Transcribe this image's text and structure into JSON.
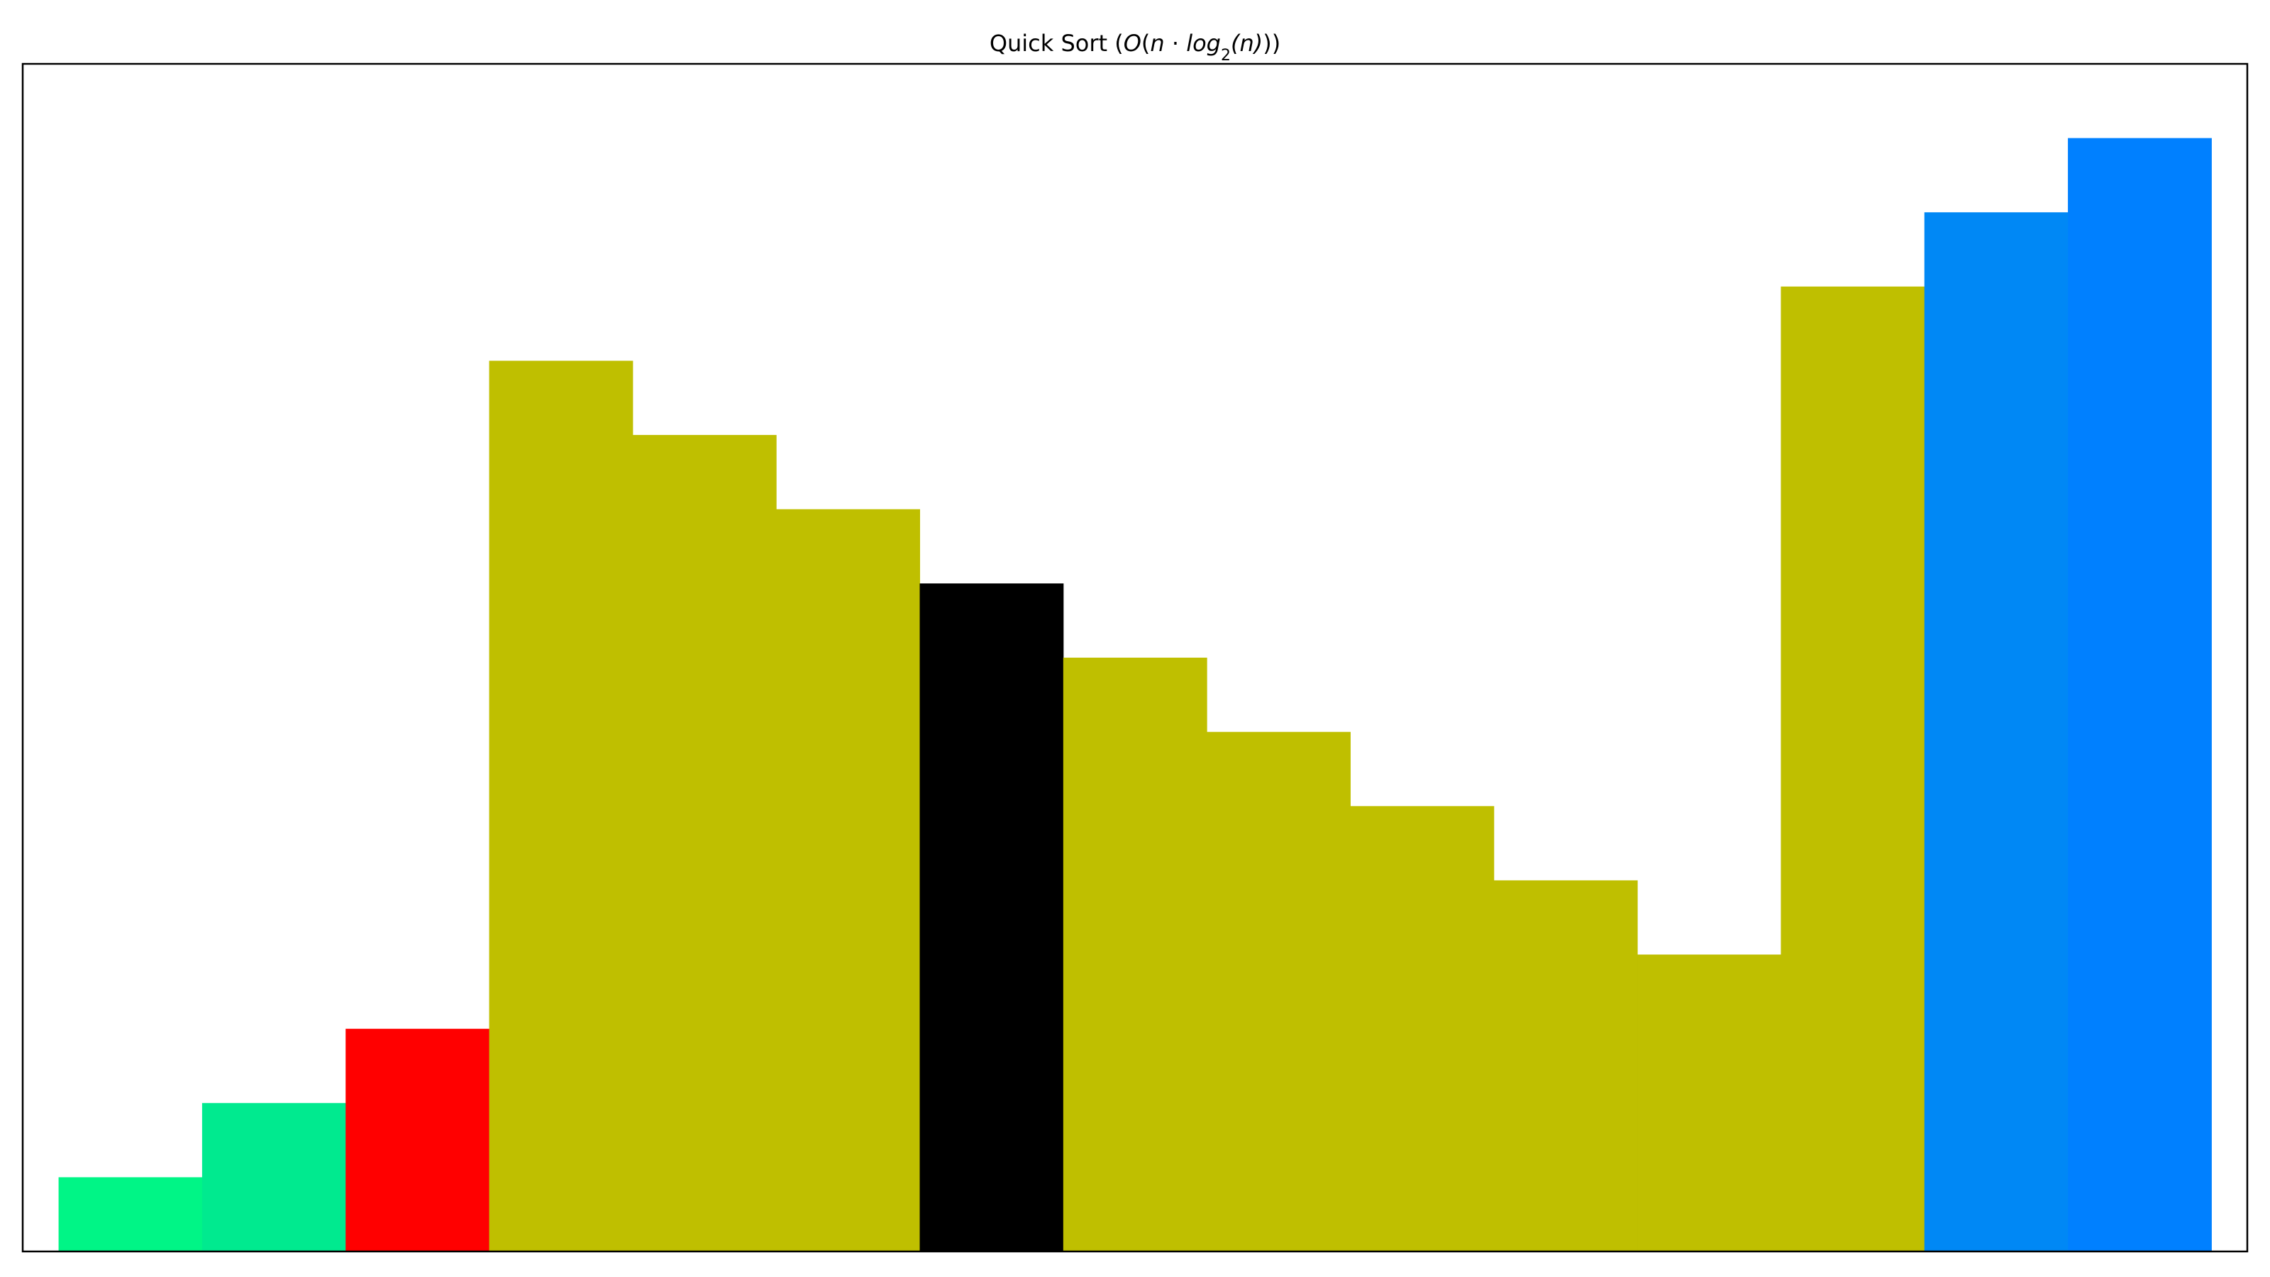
{
  "chart_data": {
    "type": "bar",
    "title": {
      "prefix": "Quick Sort (",
      "math_o": "O",
      "math_paren_open": "(",
      "math_n": "n",
      "math_dot": " · ",
      "math_log": "log",
      "math_sub": "2",
      "math_arg": "(n)",
      "suffix": "))"
    },
    "title_full": "Quick Sort (O(n · log2(n)))",
    "xlabel": "",
    "ylabel": "",
    "ylim": [
      0,
      16
    ],
    "grid": false,
    "values": [
      1,
      2,
      3,
      12,
      11,
      10,
      9,
      8,
      7,
      6,
      5,
      4,
      13,
      14,
      15
    ],
    "colors": [
      "#00f586",
      "#00ea8f",
      "#ff0000",
      "#bfbf00",
      "#bfbf00",
      "#bfbf00",
      "#000000",
      "#bfbf00",
      "#bfbf00",
      "#bfbf00",
      "#bfbf00",
      "#bfbf00",
      "#bfbf00",
      "#0088f5",
      "#0080ff"
    ],
    "states": [
      "sorted",
      "sorted",
      "current",
      "partition",
      "partition",
      "partition",
      "pivot",
      "partition",
      "partition",
      "partition",
      "partition",
      "partition",
      "partition",
      "sorted",
      "sorted"
    ]
  }
}
